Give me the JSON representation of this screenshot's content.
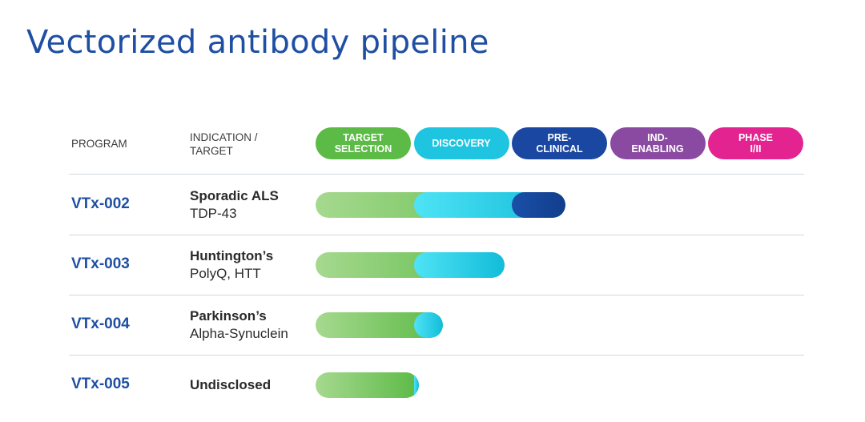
{
  "title": "Vectorized antibody pipeline",
  "header": {
    "program": "PROGRAM",
    "indication": "INDICATION /\nTARGET"
  },
  "phases": [
    {
      "label": "TARGET\nSELECTION",
      "color": "#5cba46"
    },
    {
      "label": "DISCOVERY",
      "color": "#1fc4e0"
    },
    {
      "label": "PRE-\nCLINICAL",
      "color": "#1a47a2"
    },
    {
      "label": "IND-\nENABLING",
      "color": "#8a4aa1"
    },
    {
      "label": "PHASE\nI/II",
      "color": "#e3238f"
    }
  ],
  "programs": [
    {
      "id": "VTx-002",
      "indication": "Sporadic ALS",
      "target": "TDP-43",
      "progress": 2.55
    },
    {
      "id": "VTx-003",
      "indication": "Huntington’s",
      "target": "PolyQ, HTT",
      "progress": 1.93
    },
    {
      "id": "VTx-004",
      "indication": "Parkinson’s",
      "target": "Alpha-Synuclein",
      "progress": 1.3
    },
    {
      "id": "VTx-005",
      "indication": "Undisclosed",
      "target": "",
      "progress": 1.05
    }
  ],
  "colors": {
    "title": "#1f4fa3",
    "program": "#1f4fa3",
    "divider": "#cfd9de",
    "seg_green_start": "#a6d98f",
    "seg_green_end": "#5cba46",
    "seg_cyan_start": "#4fe3f5",
    "seg_cyan_end": "#12bcd9",
    "seg_blue_start": "#1a4fa8",
    "seg_blue_end": "#123e8c"
  }
}
